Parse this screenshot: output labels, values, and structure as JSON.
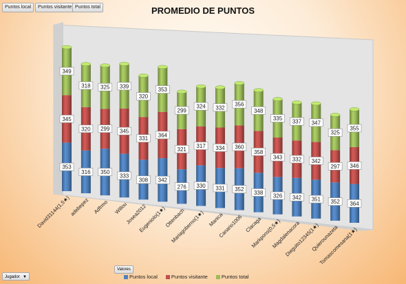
{
  "filters": [
    "Puntos local",
    "Puntos visitante",
    "Puntos total"
  ],
  "valores_label": "Valores",
  "jugador_label": "Jugador",
  "colors": {
    "local": "#4f81bd",
    "visitante": "#c0504d",
    "total": "#9bbb59"
  },
  "chart_data": {
    "type": "bar",
    "stacked": true,
    "title": "PROMEDIO DE PUNTOS",
    "categories": [
      "David31144(1,5★)",
      "adebepez",
      "Adfrmo",
      "Willou",
      "Josea2012",
      "Eugeniolo(1★)",
      "Ottenbach",
      "Mariagoberno(1★)",
      "Manica",
      "Canario1006",
      "Clacaga",
      "Markpons(0,5★)",
      "Magdalenacora",
      "Dieguito12345(1★)",
      "Quierounazeta",
      "Tomascomesana(1★)"
    ],
    "series": [
      {
        "name": "Puntos local",
        "values": [
          353,
          316,
          350,
          333,
          308,
          342,
          276,
          330,
          331,
          352,
          338,
          326,
          342,
          351,
          352,
          364
        ]
      },
      {
        "name": "Puntos visitante",
        "values": [
          345,
          320,
          299,
          345,
          331,
          364,
          321,
          317,
          334,
          360,
          358,
          343,
          332,
          342,
          297,
          346
        ]
      },
      {
        "name": "Puntos total",
        "values": [
          349,
          318,
          325,
          339,
          320,
          353,
          299,
          324,
          332,
          356,
          348,
          335,
          337,
          347,
          325,
          355
        ]
      }
    ],
    "legend_position": "bottom",
    "grid": false
  }
}
